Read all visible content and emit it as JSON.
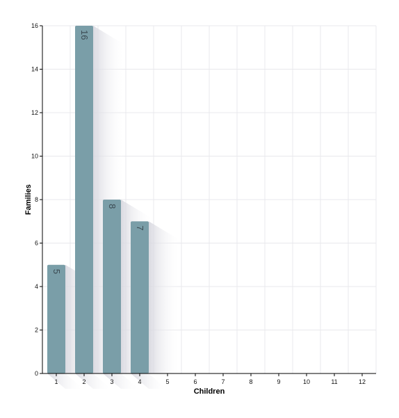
{
  "chart_data": {
    "type": "bar",
    "xlabel": "Children",
    "ylabel": "Families",
    "categories": [
      "1",
      "2",
      "3",
      "4",
      "5",
      "6",
      "7",
      "8",
      "9",
      "10",
      "11",
      "12"
    ],
    "values": [
      5,
      16,
      8,
      7,
      0,
      0,
      0,
      0,
      0,
      0,
      0,
      0
    ],
    "data_labels": [
      "5",
      "16",
      "8",
      "7",
      "",
      "",
      "",
      "",
      "",
      "",
      "",
      ""
    ],
    "ylim": [
      0,
      16
    ],
    "yticks": [
      "0",
      "2",
      "4",
      "6",
      "8",
      "10",
      "12",
      "14",
      "16"
    ],
    "grid": true,
    "legend": "none",
    "colors": {
      "bar": "#7a9ea8",
      "grid": "#e8e8ec",
      "axis": "#000000",
      "label": "#3b4a52"
    }
  }
}
